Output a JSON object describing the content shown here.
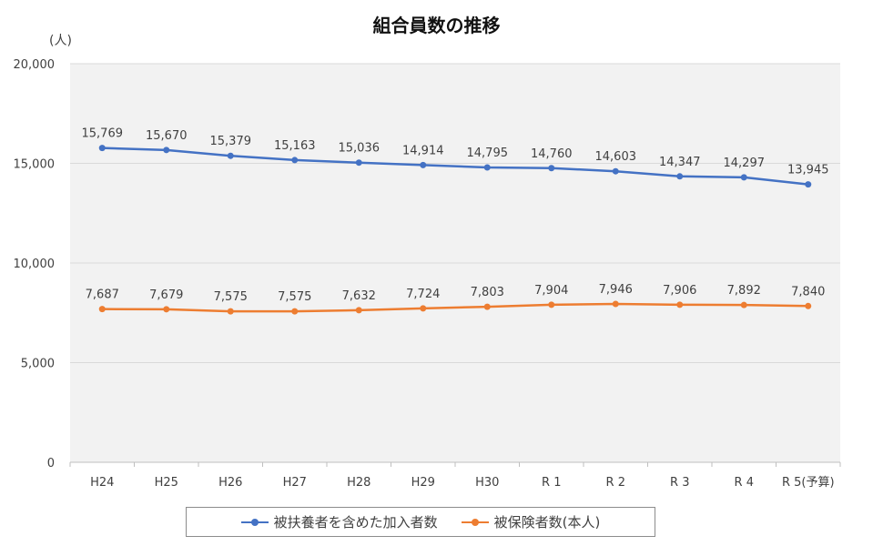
{
  "chart_data": {
    "type": "line",
    "title": "組合員数の推移",
    "unit_label": "(人)",
    "categories": [
      "H24",
      "H25",
      "H26",
      "H27",
      "H28",
      "H29",
      "H30",
      "R 1",
      "R 2",
      "R 3",
      "R 4",
      "R 5(予算)"
    ],
    "series": [
      {
        "name": "被扶養者を含めた加入者数",
        "color": "#4472C4",
        "values": [
          15769,
          15670,
          15379,
          15163,
          15036,
          14914,
          14795,
          14760,
          14603,
          14347,
          14297,
          13945
        ],
        "labels": [
          "15,769",
          "15,670",
          "15,379",
          "15,163",
          "15,036",
          "14,914",
          "14,795",
          "14,760",
          "14,603",
          "14,347",
          "14,297",
          "13,945"
        ]
      },
      {
        "name": "被保険者数(本人)",
        "color": "#ED7D31",
        "values": [
          7687,
          7679,
          7575,
          7575,
          7632,
          7724,
          7803,
          7904,
          7946,
          7906,
          7892,
          7840
        ],
        "labels": [
          "7,687",
          "7,679",
          "7,575",
          "7,575",
          "7,632",
          "7,724",
          "7,803",
          "7,904",
          "7,946",
          "7,906",
          "7,892",
          "7,840"
        ]
      }
    ],
    "yticks": [
      0,
      5000,
      10000,
      15000,
      20000
    ],
    "ytick_labels": [
      "0",
      "5,000",
      "10,000",
      "15,000",
      "20,000"
    ],
    "ylim": [
      0,
      20000
    ],
    "grid": true,
    "legend_position": "bottom",
    "plot_background": "#F2F2F2"
  }
}
